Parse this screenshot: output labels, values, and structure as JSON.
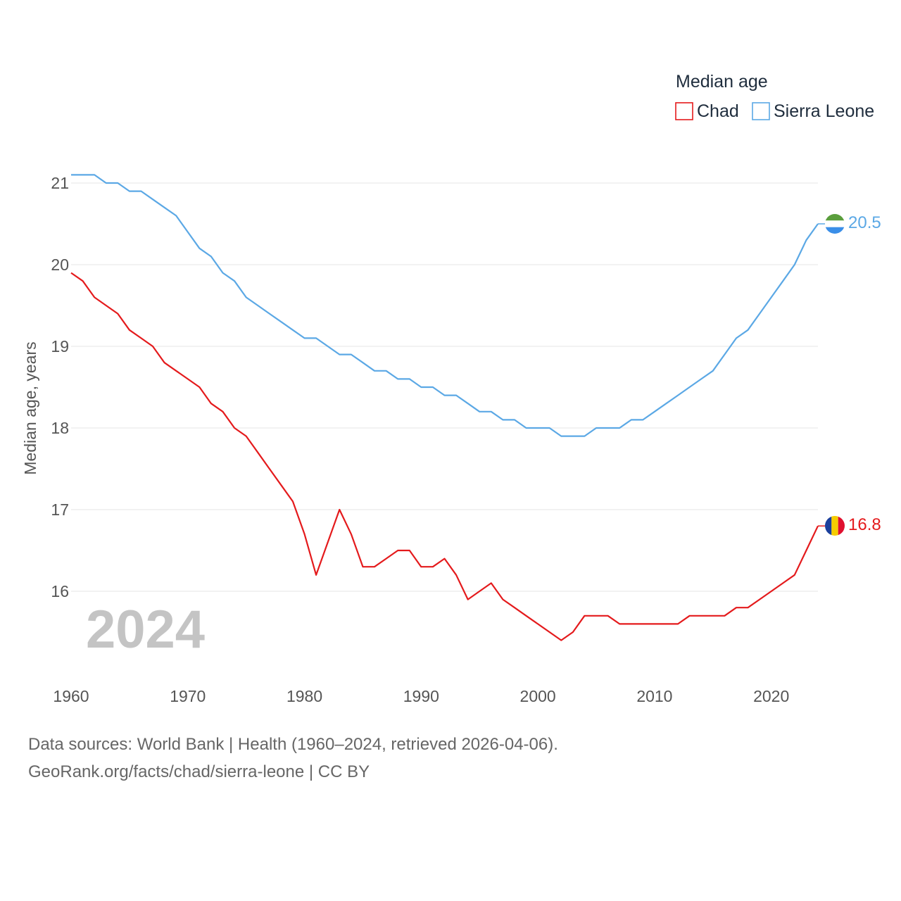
{
  "chart_data": {
    "type": "line",
    "ylabel": "Median age, years",
    "legend_title": "Median age",
    "legend_position": "top-right",
    "year_label": "2024",
    "xlim": [
      1960,
      2024
    ],
    "ylim": [
      15.1,
      21.2
    ],
    "x_ticks": [
      1960,
      1970,
      1980,
      1990,
      2000,
      2010,
      2020
    ],
    "y_ticks": [
      16,
      17,
      18,
      19,
      20,
      21
    ],
    "x": [
      1960,
      1961,
      1962,
      1963,
      1964,
      1965,
      1966,
      1967,
      1968,
      1969,
      1970,
      1971,
      1972,
      1973,
      1974,
      1975,
      1976,
      1977,
      1978,
      1979,
      1980,
      1981,
      1982,
      1983,
      1984,
      1985,
      1986,
      1987,
      1988,
      1989,
      1990,
      1991,
      1992,
      1993,
      1994,
      1995,
      1996,
      1997,
      1998,
      1999,
      2000,
      2001,
      2002,
      2003,
      2004,
      2005,
      2006,
      2007,
      2008,
      2009,
      2010,
      2011,
      2012,
      2013,
      2014,
      2015,
      2016,
      2017,
      2018,
      2019,
      2020,
      2021,
      2022,
      2023,
      2024
    ],
    "series": [
      {
        "name": "Chad",
        "color": "#e41a1c",
        "end_label": "16.8",
        "values": [
          19.9,
          19.8,
          19.6,
          19.5,
          19.4,
          19.2,
          19.1,
          19.0,
          18.8,
          18.7,
          18.6,
          18.5,
          18.3,
          18.2,
          18.0,
          17.9,
          17.7,
          17.5,
          17.3,
          17.1,
          16.7,
          16.2,
          16.6,
          17.0,
          16.7,
          16.3,
          16.3,
          16.4,
          16.5,
          16.5,
          16.3,
          16.3,
          16.4,
          16.2,
          15.9,
          16.0,
          16.1,
          15.9,
          15.8,
          15.7,
          15.6,
          15.5,
          15.4,
          15.5,
          15.7,
          15.7,
          15.7,
          15.6,
          15.6,
          15.6,
          15.6,
          15.6,
          15.6,
          15.7,
          15.7,
          15.7,
          15.7,
          15.8,
          15.8,
          15.9,
          16.0,
          16.1,
          16.2,
          16.5,
          16.8
        ]
      },
      {
        "name": "Sierra Leone",
        "color": "#5ba8e5",
        "end_label": "20.5",
        "values": [
          21.1,
          21.1,
          21.1,
          21.0,
          21.0,
          20.9,
          20.9,
          20.8,
          20.7,
          20.6,
          20.4,
          20.2,
          20.1,
          19.9,
          19.8,
          19.6,
          19.5,
          19.4,
          19.3,
          19.2,
          19.1,
          19.1,
          19.0,
          18.9,
          18.9,
          18.8,
          18.7,
          18.7,
          18.6,
          18.6,
          18.5,
          18.5,
          18.4,
          18.4,
          18.3,
          18.2,
          18.2,
          18.1,
          18.1,
          18.0,
          18.0,
          18.0,
          17.9,
          17.9,
          17.9,
          18.0,
          18.0,
          18.0,
          18.1,
          18.1,
          18.2,
          18.3,
          18.4,
          18.5,
          18.6,
          18.7,
          18.9,
          19.1,
          19.2,
          19.4,
          19.6,
          19.8,
          20.0,
          20.3,
          20.5
        ]
      }
    ]
  },
  "flags": {
    "sierra_leone": [
      "#5a9e3c",
      "#ffffff",
      "#3a8ee8"
    ],
    "chad": [
      "#1b3f9c",
      "#f5cc00",
      "#e0102f"
    ]
  },
  "footer": {
    "source_line1": "Data sources: World Bank | Health (1960–2024, retrieved 2026-04-06).",
    "source_line2": "GeoRank.org/facts/chad/sierra-leone | CC BY"
  }
}
